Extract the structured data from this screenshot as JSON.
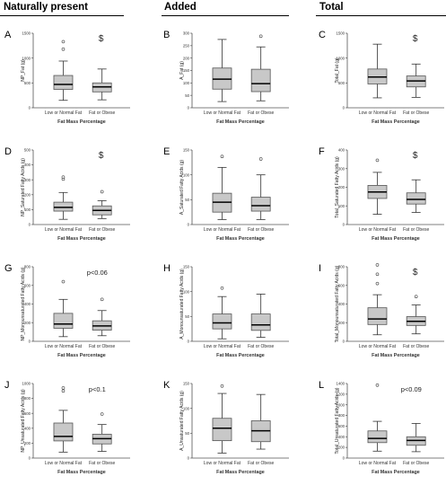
{
  "headers": [
    "Naturally present",
    "Added",
    "Total"
  ],
  "chart_data": [
    {
      "type": "boxplot",
      "letter": "A",
      "ylabel": "NP_Fat (g)",
      "xlabel": "Fat Mass Percentage",
      "ylim": [
        0,
        1500
      ],
      "yticks": [
        0,
        500,
        1000,
        1500
      ],
      "annotation": "$",
      "categories": [
        "Low or Normal Fat",
        "Fat or Obese"
      ],
      "boxes": [
        {
          "min": 150,
          "q1": 370,
          "median": 470,
          "q3": 650,
          "max": 940,
          "outliers": [
            1180,
            1330
          ]
        },
        {
          "min": 160,
          "q1": 320,
          "median": 420,
          "q3": 500,
          "max": 780,
          "outliers": []
        }
      ]
    },
    {
      "type": "boxplot",
      "letter": "B",
      "ylabel": "A_Fat (g)",
      "xlabel": "Fat Mass Percentage",
      "ylim": [
        0,
        300
      ],
      "yticks": [
        0,
        50,
        100,
        150,
        200,
        250,
        300
      ],
      "annotation": "",
      "categories": [
        "Low or Normal Fat",
        "Fat or Obese"
      ],
      "boxes": [
        {
          "min": 25,
          "q1": 75,
          "median": 115,
          "q3": 160,
          "max": 275,
          "outliers": []
        },
        {
          "min": 28,
          "q1": 65,
          "median": 97,
          "q3": 155,
          "max": 245,
          "outliers": [
            288
          ]
        }
      ]
    },
    {
      "type": "boxplot",
      "letter": "C",
      "ylabel": "Total_Fat (g)",
      "xlabel": "Fat Mass Percentage",
      "ylim": [
        0,
        1500
      ],
      "yticks": [
        0,
        500,
        1000,
        1500
      ],
      "annotation": "$",
      "categories": [
        "Low or Normal Fat",
        "Fat or Obese"
      ],
      "boxes": [
        {
          "min": 200,
          "q1": 480,
          "median": 620,
          "q3": 780,
          "max": 1280,
          "outliers": []
        },
        {
          "min": 210,
          "q1": 420,
          "median": 540,
          "q3": 640,
          "max": 880,
          "outliers": []
        }
      ]
    },
    {
      "type": "boxplot",
      "letter": "D",
      "ylabel": "NP_Saturated Fatty Acids (g)",
      "xlabel": "Fat Mass Percentage",
      "ylim": [
        0,
        500
      ],
      "yticks": [
        0,
        100,
        200,
        300,
        400,
        500
      ],
      "annotation": "$",
      "categories": [
        "Low or Normal Fat",
        "Fat or Obese"
      ],
      "boxes": [
        {
          "min": 35,
          "q1": 90,
          "median": 115,
          "q3": 150,
          "max": 215,
          "outliers": [
            305,
            318
          ]
        },
        {
          "min": 40,
          "q1": 65,
          "median": 95,
          "q3": 125,
          "max": 160,
          "outliers": [
            220
          ]
        }
      ]
    },
    {
      "type": "boxplot",
      "letter": "E",
      "ylabel": "A_Saturated Fatty Acids (g)",
      "xlabel": "Fat Mass Percentage",
      "ylim": [
        0,
        150
      ],
      "yticks": [
        0,
        50,
        100,
        150
      ],
      "annotation": "",
      "categories": [
        "Low or Normal Fat",
        "Fat or Obese"
      ],
      "boxes": [
        {
          "min": 10,
          "q1": 25,
          "median": 45,
          "q3": 63,
          "max": 115,
          "outliers": [
            137
          ]
        },
        {
          "min": 10,
          "q1": 27,
          "median": 38,
          "q3": 55,
          "max": 100,
          "outliers": [
            132
          ]
        }
      ]
    },
    {
      "type": "boxplot",
      "letter": "F",
      "ylabel": "Total_Saturated Fatty Acids (g)",
      "xlabel": "Fat Mass Percentage",
      "ylim": [
        0,
        400
      ],
      "yticks": [
        0,
        100,
        200,
        300,
        400
      ],
      "annotation": "$",
      "categories": [
        "Low or Normal Fat",
        "Fat or Obese"
      ],
      "boxes": [
        {
          "min": 55,
          "q1": 140,
          "median": 175,
          "q3": 210,
          "max": 280,
          "outliers": [
            345
          ]
        },
        {
          "min": 65,
          "q1": 110,
          "median": 135,
          "q3": 170,
          "max": 240,
          "outliers": []
        }
      ]
    },
    {
      "type": "boxplot",
      "letter": "G",
      "ylabel": "NP_Monounsaturated Fatty Acids (g)",
      "xlabel": "Fat Mass Percentage",
      "ylim": [
        0,
        800
      ],
      "yticks": [
        0,
        200,
        400,
        600,
        800
      ],
      "annotation": "p<0.06",
      "categories": [
        "Low or Normal Fat",
        "Fat or Obese"
      ],
      "boxes": [
        {
          "min": 50,
          "q1": 140,
          "median": 185,
          "q3": 300,
          "max": 450,
          "outliers": [
            640
          ]
        },
        {
          "min": 60,
          "q1": 120,
          "median": 165,
          "q3": 220,
          "max": 330,
          "outliers": [
            450
          ]
        }
      ]
    },
    {
      "type": "boxplot",
      "letter": "H",
      "ylabel": "A_Monounsaturated Fatty Acids (g)",
      "xlabel": "Fat Mass Percentage",
      "ylim": [
        0,
        150
      ],
      "yticks": [
        0,
        50,
        100,
        150
      ],
      "annotation": "",
      "categories": [
        "Low or Normal Fat",
        "Fat or Obese"
      ],
      "boxes": [
        {
          "min": 5,
          "q1": 25,
          "median": 37,
          "q3": 55,
          "max": 90,
          "outliers": [
            107
          ]
        },
        {
          "min": 8,
          "q1": 22,
          "median": 33,
          "q3": 55,
          "max": 95,
          "outliers": []
        }
      ]
    },
    {
      "type": "boxplot",
      "letter": "I",
      "ylabel": "Total_Monounsaturated Fatty Acids (g)",
      "xlabel": "Fat Mass Percentage",
      "ylim": [
        0,
        800
      ],
      "yticks": [
        0,
        200,
        400,
        600,
        800
      ],
      "annotation": "$",
      "categories": [
        "Low or Normal Fat",
        "Fat or Obese"
      ],
      "boxes": [
        {
          "min": 70,
          "q1": 180,
          "median": 240,
          "q3": 360,
          "max": 500,
          "outliers": [
            620,
            720,
            820
          ]
        },
        {
          "min": 80,
          "q1": 170,
          "median": 215,
          "q3": 265,
          "max": 390,
          "outliers": [
            480
          ]
        }
      ]
    },
    {
      "type": "boxplot",
      "letter": "J",
      "ylabel": "NP_Unsaturated Fatty Acids (g)",
      "xlabel": "Fat Mass Percentage",
      "ylim": [
        0,
        1000
      ],
      "yticks": [
        0,
        200,
        400,
        600,
        800,
        1000
      ],
      "annotation": "p<0.1",
      "categories": [
        "Low or Normal Fat",
        "Fat or Obese"
      ],
      "boxes": [
        {
          "min": 80,
          "q1": 230,
          "median": 290,
          "q3": 470,
          "max": 640,
          "outliers": [
            900,
            940
          ]
        },
        {
          "min": 90,
          "q1": 190,
          "median": 260,
          "q3": 320,
          "max": 450,
          "outliers": [
            590
          ]
        }
      ]
    },
    {
      "type": "boxplot",
      "letter": "K",
      "ylabel": "A_Unsaturated Fatty Acids (g)",
      "xlabel": "Fat Mass Percentage",
      "ylim": [
        0,
        150
      ],
      "yticks": [
        0,
        50,
        100,
        150
      ],
      "annotation": "",
      "categories": [
        "Low or Normal Fat",
        "Fat or Obese"
      ],
      "boxes": [
        {
          "min": 10,
          "q1": 35,
          "median": 60,
          "q3": 80,
          "max": 130,
          "outliers": [
            145
          ]
        },
        {
          "min": 18,
          "q1": 33,
          "median": 55,
          "q3": 75,
          "max": 128,
          "outliers": []
        }
      ]
    },
    {
      "type": "boxplot",
      "letter": "L",
      "ylabel": "Total_Unsaturated Fatty Acids (g)",
      "xlabel": "Fat Mass Percentage",
      "ylim": [
        0,
        1400
      ],
      "yticks": [
        0,
        200,
        400,
        600,
        800,
        1000,
        1200,
        1400
      ],
      "annotation": "p<0.09",
      "categories": [
        "Low or Normal Fat",
        "Fat or Obese"
      ],
      "boxes": [
        {
          "min": 130,
          "q1": 290,
          "median": 370,
          "q3": 510,
          "max": 690,
          "outliers": [
            1370
          ]
        },
        {
          "min": 120,
          "q1": 240,
          "median": 330,
          "q3": 400,
          "max": 650,
          "outliers": []
        }
      ]
    }
  ]
}
